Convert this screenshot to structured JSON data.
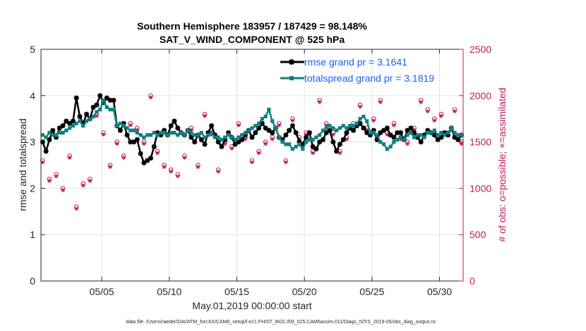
{
  "chart_data": {
    "type": "line",
    "title": "Southern Hemisphere 183957 / 187429 = 98.148%",
    "subtitle": "SAT_V_WIND_COMPONENT @ 525 hPa",
    "xlabel": "May.01,2019 00:00:00 start",
    "ylabel": "rmse and totalspread",
    "y2label": "# of obs: o=possible; ×=assimilated",
    "footnote": "data file: /Users/raeder/DAI/ATM_forcXX/CAM6_setup/f.e21.FHIST_BGC.f09_025.CAM6assim.011/Diags_NTrS_2019-05/obs_diag_output.nc",
    "xlim": [
      0.5,
      31.75
    ],
    "ylim": [
      0,
      5
    ],
    "y2lim": [
      0,
      2500
    ],
    "xticks": [
      5,
      10,
      15,
      20,
      25,
      30
    ],
    "xticklabels": [
      "05/05",
      "05/10",
      "05/15",
      "05/20",
      "05/25",
      "05/30"
    ],
    "yticks": [
      0,
      1,
      2,
      3,
      4,
      5
    ],
    "y2ticks": [
      0,
      500,
      1000,
      1500,
      2000,
      2500
    ],
    "legend_position": "top-right",
    "colors": {
      "rmse": "#000000",
      "spread": "#0f8080",
      "obs": "#c2185b",
      "legend_text": "#1a5cff"
    },
    "series": [
      {
        "name": "rmse grand pr = 3.1641",
        "axis": "left",
        "x": [
          0.625,
          0.875,
          1.125,
          1.375,
          1.625,
          1.875,
          2.125,
          2.375,
          2.625,
          2.875,
          3.125,
          3.375,
          3.625,
          3.875,
          4.125,
          4.375,
          4.625,
          4.875,
          5.125,
          5.375,
          5.625,
          5.875,
          6.125,
          6.375,
          6.625,
          6.875,
          7.125,
          7.375,
          7.625,
          7.875,
          8.125,
          8.375,
          8.625,
          8.875,
          9.125,
          9.375,
          9.625,
          9.875,
          10.125,
          10.375,
          10.625,
          10.875,
          11.125,
          11.375,
          11.625,
          11.875,
          12.125,
          12.375,
          12.625,
          12.875,
          13.125,
          13.375,
          13.625,
          13.875,
          14.125,
          14.375,
          14.625,
          14.875,
          15.125,
          15.375,
          15.625,
          15.875,
          16.125,
          16.375,
          16.625,
          16.875,
          17.125,
          17.375,
          17.625,
          17.875,
          18.125,
          18.375,
          18.625,
          18.875,
          19.125,
          19.375,
          19.625,
          19.875,
          20.125,
          20.375,
          20.625,
          20.875,
          21.125,
          21.375,
          21.625,
          21.875,
          22.125,
          22.375,
          22.625,
          22.875,
          23.125,
          23.375,
          23.625,
          23.875,
          24.125,
          24.375,
          24.625,
          24.875,
          25.125,
          25.375,
          25.625,
          25.875,
          26.125,
          26.375,
          26.625,
          26.875,
          27.125,
          27.375,
          27.625,
          27.875,
          28.125,
          28.375,
          28.625,
          28.875,
          29.125,
          29.375,
          29.625,
          29.875,
          30.125,
          30.375,
          30.625,
          30.875,
          31.125,
          31.375,
          31.625
        ],
        "values": [
          3.0,
          2.8,
          3.05,
          3.25,
          3.1,
          3.3,
          3.35,
          3.45,
          3.4,
          3.45,
          3.95,
          3.55,
          3.4,
          3.6,
          3.5,
          3.75,
          3.8,
          4.0,
          3.85,
          3.95,
          3.9,
          3.9,
          3.35,
          3.25,
          3.4,
          3.15,
          3.0,
          3.0,
          3.05,
          2.75,
          2.55,
          2.6,
          2.65,
          2.9,
          3.2,
          3.15,
          3.25,
          3.15,
          3.35,
          3.45,
          3.3,
          3.2,
          3.15,
          3.25,
          3.1,
          3.0,
          3.15,
          3.05,
          2.95,
          3.2,
          3.35,
          3.15,
          3.0,
          2.9,
          3.05,
          3.2,
          3.1,
          2.95,
          3.0,
          3.05,
          3.15,
          3.25,
          3.1,
          3.2,
          3.3,
          3.4,
          3.3,
          3.25,
          3.2,
          3.3,
          3.1,
          3.05,
          3.15,
          3.25,
          3.35,
          3.2,
          3.0,
          2.95,
          3.1,
          3.2,
          2.9,
          2.85,
          3.0,
          3.05,
          3.2,
          3.25,
          3.0,
          2.8,
          2.95,
          3.05,
          3.2,
          3.3,
          3.25,
          3.35,
          3.4,
          3.3,
          3.2,
          3.15,
          3.25,
          3.05,
          3.2,
          3.25,
          3.3,
          3.15,
          3.1,
          3.2,
          3.2,
          3.05,
          3.25,
          3.3,
          3.2,
          3.1,
          3.0,
          3.15,
          3.25,
          3.2,
          3.15,
          3.05,
          3.1,
          3.2,
          3.15,
          3.3,
          3.1,
          3.05,
          3.15
        ]
      },
      {
        "name": "totalspread grand pr = 3.1819",
        "axis": "left",
        "x": [
          0.625,
          0.875,
          1.125,
          1.375,
          1.625,
          1.875,
          2.125,
          2.375,
          2.625,
          2.875,
          3.125,
          3.375,
          3.625,
          3.875,
          4.125,
          4.375,
          4.625,
          4.875,
          5.125,
          5.375,
          5.625,
          5.875,
          6.125,
          6.375,
          6.625,
          6.875,
          7.125,
          7.375,
          7.625,
          7.875,
          8.125,
          8.375,
          8.625,
          8.875,
          9.125,
          9.375,
          9.625,
          9.875,
          10.125,
          10.375,
          10.625,
          10.875,
          11.125,
          11.375,
          11.625,
          11.875,
          12.125,
          12.375,
          12.625,
          12.875,
          13.125,
          13.375,
          13.625,
          13.875,
          14.125,
          14.375,
          14.625,
          14.875,
          15.125,
          15.375,
          15.625,
          15.875,
          16.125,
          16.375,
          16.625,
          16.875,
          17.125,
          17.375,
          17.625,
          17.875,
          18.125,
          18.375,
          18.625,
          18.875,
          19.125,
          19.375,
          19.625,
          19.875,
          20.125,
          20.375,
          20.625,
          20.875,
          21.125,
          21.375,
          21.625,
          21.875,
          22.125,
          22.375,
          22.625,
          22.875,
          23.125,
          23.375,
          23.625,
          23.875,
          24.125,
          24.375,
          24.625,
          24.875,
          25.125,
          25.375,
          25.625,
          25.875,
          26.125,
          26.375,
          26.625,
          26.875,
          27.125,
          27.375,
          27.625,
          27.875,
          28.125,
          28.375,
          28.625,
          28.875,
          29.125,
          29.375,
          29.625,
          29.875,
          30.125,
          30.375,
          30.625,
          30.875,
          31.125,
          31.375,
          31.625
        ],
        "values": [
          3.15,
          3.1,
          3.2,
          3.15,
          3.15,
          3.2,
          3.2,
          3.25,
          3.3,
          3.35,
          3.4,
          3.45,
          3.35,
          3.45,
          3.5,
          3.55,
          3.65,
          3.7,
          3.9,
          3.75,
          3.7,
          3.7,
          3.35,
          3.4,
          3.35,
          3.3,
          3.25,
          3.25,
          3.2,
          3.15,
          3.1,
          3.15,
          3.15,
          3.2,
          3.15,
          3.2,
          3.2,
          3.15,
          3.2,
          3.2,
          3.15,
          3.2,
          3.15,
          3.25,
          3.2,
          3.15,
          3.15,
          3.2,
          3.1,
          3.15,
          3.2,
          3.1,
          3.1,
          3.05,
          3.1,
          3.15,
          3.1,
          3.05,
          3.1,
          3.15,
          3.2,
          3.25,
          3.3,
          3.35,
          3.4,
          3.5,
          3.55,
          3.7,
          3.45,
          3.3,
          3.1,
          3.0,
          2.95,
          2.95,
          2.85,
          2.9,
          2.95,
          2.85,
          3.0,
          3.05,
          3.05,
          3.1,
          3.15,
          3.25,
          3.3,
          3.35,
          3.3,
          3.25,
          3.3,
          3.35,
          3.3,
          3.35,
          3.35,
          3.4,
          3.5,
          3.55,
          3.45,
          3.2,
          3.2,
          3.15,
          3.0,
          2.95,
          2.85,
          2.9,
          3.0,
          3.05,
          3.1,
          3.05,
          3.15,
          3.2,
          3.1,
          3.15,
          3.15,
          3.1,
          3.2,
          3.2,
          3.25,
          3.15,
          3.2,
          3.15,
          3.2,
          3.3,
          3.2,
          3.15,
          3.15
        ]
      },
      {
        "name": "obs possible",
        "axis": "right",
        "marker": "o",
        "x": [
          0.625,
          1.125,
          1.625,
          2.125,
          2.625,
          3.125,
          3.625,
          4.125,
          4.625,
          5.125,
          5.625,
          6.125,
          6.625,
          7.125,
          7.625,
          8.125,
          8.625,
          9.125,
          9.625,
          10.125,
          10.625,
          11.125,
          11.625,
          12.125,
          12.625,
          13.125,
          13.625,
          14.125,
          14.625,
          15.125,
          15.625,
          16.125,
          16.625,
          17.125,
          17.625,
          18.125,
          18.625,
          19.125,
          19.625,
          20.125,
          20.625,
          21.125,
          21.625,
          22.125,
          22.625,
          23.125,
          23.625,
          24.125,
          24.625,
          25.125,
          25.625,
          26.125,
          26.625,
          27.125,
          27.625,
          28.125,
          28.625,
          29.125,
          29.625,
          30.125,
          30.625,
          31.125,
          31.625
        ],
        "values": [
          1300,
          1100,
          1150,
          1000,
          1350,
          800,
          1050,
          1100,
          1800,
          1600,
          1250,
          1500,
          1350,
          1700,
          1650,
          1500,
          2000,
          1400,
          1250,
          1200,
          1150,
          1350,
          1650,
          1250,
          1800,
          1600,
          1200,
          1500,
          1450,
          1700,
          1550,
          1300,
          1400,
          1500,
          1550,
          1700,
          1300,
          1750,
          1550,
          1600,
          1400,
          1950,
          1700,
          1600,
          1400,
          1550,
          1700,
          1900,
          1650,
          1750,
          1950,
          1600,
          1700,
          1550,
          1500,
          1650,
          1950,
          1850,
          1750,
          1800,
          1600,
          1850,
          1500
        ]
      },
      {
        "name": "obs assimilated",
        "axis": "right",
        "marker": "x",
        "x": [
          0.625,
          1.125,
          1.625,
          2.125,
          2.625,
          3.125,
          3.625,
          4.125,
          4.625,
          5.125,
          5.625,
          6.125,
          6.625,
          7.125,
          7.625,
          8.125,
          8.625,
          9.125,
          9.625,
          10.125,
          10.625,
          11.125,
          11.625,
          12.125,
          12.625,
          13.125,
          13.625,
          14.125,
          14.625,
          15.125,
          15.625,
          16.125,
          16.625,
          17.125,
          17.625,
          18.125,
          18.625,
          19.125,
          19.625,
          20.125,
          20.625,
          21.125,
          21.625,
          22.125,
          22.625,
          23.125,
          23.625,
          24.125,
          24.625,
          25.125,
          25.625,
          26.125,
          26.625,
          27.125,
          27.625,
          28.125,
          28.625,
          29.125,
          29.625,
          30.125,
          30.625,
          31.125,
          31.625
        ],
        "values": [
          1280,
          1080,
          1130,
          980,
          1330,
          780,
          1030,
          1080,
          1780,
          1580,
          1230,
          1480,
          1330,
          1680,
          1630,
          1480,
          1980,
          1380,
          1230,
          1180,
          1130,
          1330,
          1630,
          1230,
          1780,
          1580,
          1180,
          1480,
          1430,
          1680,
          1530,
          1280,
          1380,
          1480,
          1530,
          1680,
          1280,
          1730,
          1530,
          1580,
          1380,
          1930,
          1680,
          1580,
          1380,
          1530,
          1680,
          1880,
          1630,
          1730,
          1930,
          1580,
          1680,
          1530,
          1480,
          1630,
          1930,
          1830,
          1730,
          1780,
          1580,
          1830,
          1480
        ]
      }
    ]
  }
}
